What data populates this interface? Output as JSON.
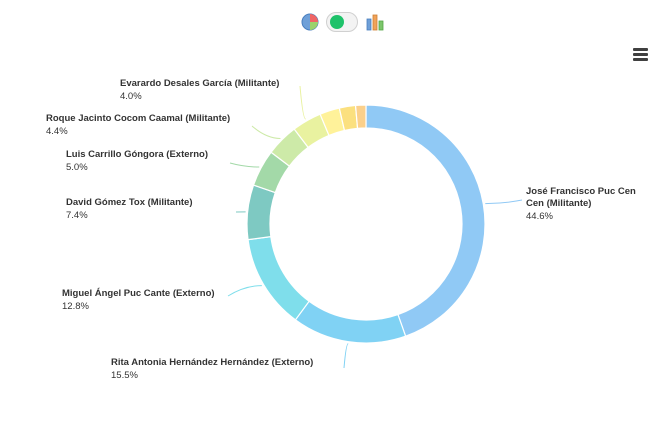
{
  "toolbar": {
    "icons": [
      "pie-chart-icon",
      "toggle-switch",
      "bar-chart-icon"
    ],
    "menu_icon": "hamburger-menu-icon",
    "toggle_on_color": "#1ec26a",
    "pie_icon_colors": [
      "#6fa0d8",
      "#f06565",
      "#9bd36b"
    ],
    "bar_icon_colors": [
      "#6fa0d8",
      "#f0a35a",
      "#7cc66b"
    ]
  },
  "chart_data": {
    "type": "pie",
    "variant": "donut",
    "title": "",
    "legend": "none",
    "slices": [
      {
        "name": "José Francisco Puc Cen",
        "name_line2": "Cen (Militante)",
        "value": 44.6,
        "label": "44.6%",
        "color": "#90c9f5"
      },
      {
        "name": "Rita Antonia Hernández Hernández (Externo)",
        "value": 15.5,
        "label": "15.5%",
        "color": "#80d2f4"
      },
      {
        "name": "Miguel Ángel Puc Cante (Externo)",
        "value": 12.8,
        "label": "12.8%",
        "color": "#7fdeeb"
      },
      {
        "name": "David Gómez Tox (Militante)",
        "value": 7.4,
        "label": "7.4%",
        "color": "#7ec9c2"
      },
      {
        "name": "Luis Carrillo Góngora (Externo)",
        "value": 5.0,
        "label": "5.0%",
        "color": "#a3d9a8"
      },
      {
        "name": "Roque Jacinto Cocom Caamal (Militante)",
        "value": 4.4,
        "label": "4.4%",
        "color": "#cdeaa8"
      },
      {
        "name": "Evarardo Desales García (Militante)",
        "value": 4.0,
        "label": "4.0%",
        "color": "#e9f2a0"
      },
      {
        "name": "",
        "value": 2.7,
        "label": "",
        "color": "#fff29a"
      },
      {
        "name": "",
        "value": 2.2,
        "label": "",
        "color": "#fbe07f"
      },
      {
        "name": "",
        "value": 1.4,
        "label": "",
        "color": "#fbd08b"
      }
    ]
  }
}
